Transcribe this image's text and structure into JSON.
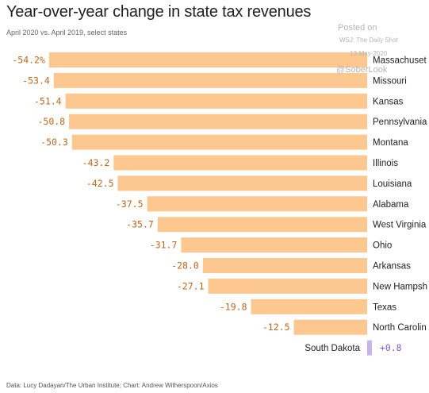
{
  "header": {
    "title": "Year-over-year change in state tax revenues",
    "subtitle": "April 2020 vs. April 2019, select states"
  },
  "watermark": {
    "posted": "Posted on",
    "source": "WSJ: The Daily Shot",
    "date": "13-May-2020",
    "handle": "@SoberLook"
  },
  "footer": {
    "credit": "Data: Lucy Dadayan/The Urban Institute; Chart: Andrew Witherspoon/Axios"
  },
  "colors": {
    "negative_bar": "#fcc88f",
    "positive_bar": "#c9b3ef",
    "negative_label": "#c0651a",
    "positive_label": "#7b5fcf",
    "category_label": "#222222"
  },
  "chart_data": {
    "type": "bar",
    "orientation": "horizontal",
    "categories": [
      "Massachusetts",
      "Missouri",
      "Kansas",
      "Pennsylvania",
      "Montana",
      "Illinois",
      "Louisiana",
      "Alabama",
      "West Virginia",
      "Ohio",
      "Arkansas",
      "New Hampshire",
      "Texas",
      "North Carolina",
      "South Dakota"
    ],
    "category_labels_shown": [
      "Massachuset",
      "Missouri",
      "Kansas",
      "Pennsylvania",
      "Montana",
      "Illinois",
      "Louisiana",
      "Alabama",
      "West Virginia",
      "Ohio",
      "Arkansas",
      "New Hampsh",
      "Texas",
      "North Carolin",
      "South Dakota"
    ],
    "values": [
      -54.2,
      -53.4,
      -51.4,
      -50.8,
      -50.3,
      -43.2,
      -42.5,
      -37.5,
      -35.7,
      -31.7,
      -28.0,
      -27.1,
      -19.8,
      -12.5,
      0.8
    ],
    "value_labels": [
      "-54.2%",
      "-53.4",
      "-51.4",
      "-50.8",
      "-50.3",
      "-43.2",
      "-42.5",
      "-37.5",
      "-35.7",
      "-31.7",
      "-28.0",
      "-27.1",
      "-19.8",
      "-12.5",
      "+0.8"
    ],
    "xlim": [
      -55,
      1
    ],
    "grid": false,
    "legend": "none"
  }
}
